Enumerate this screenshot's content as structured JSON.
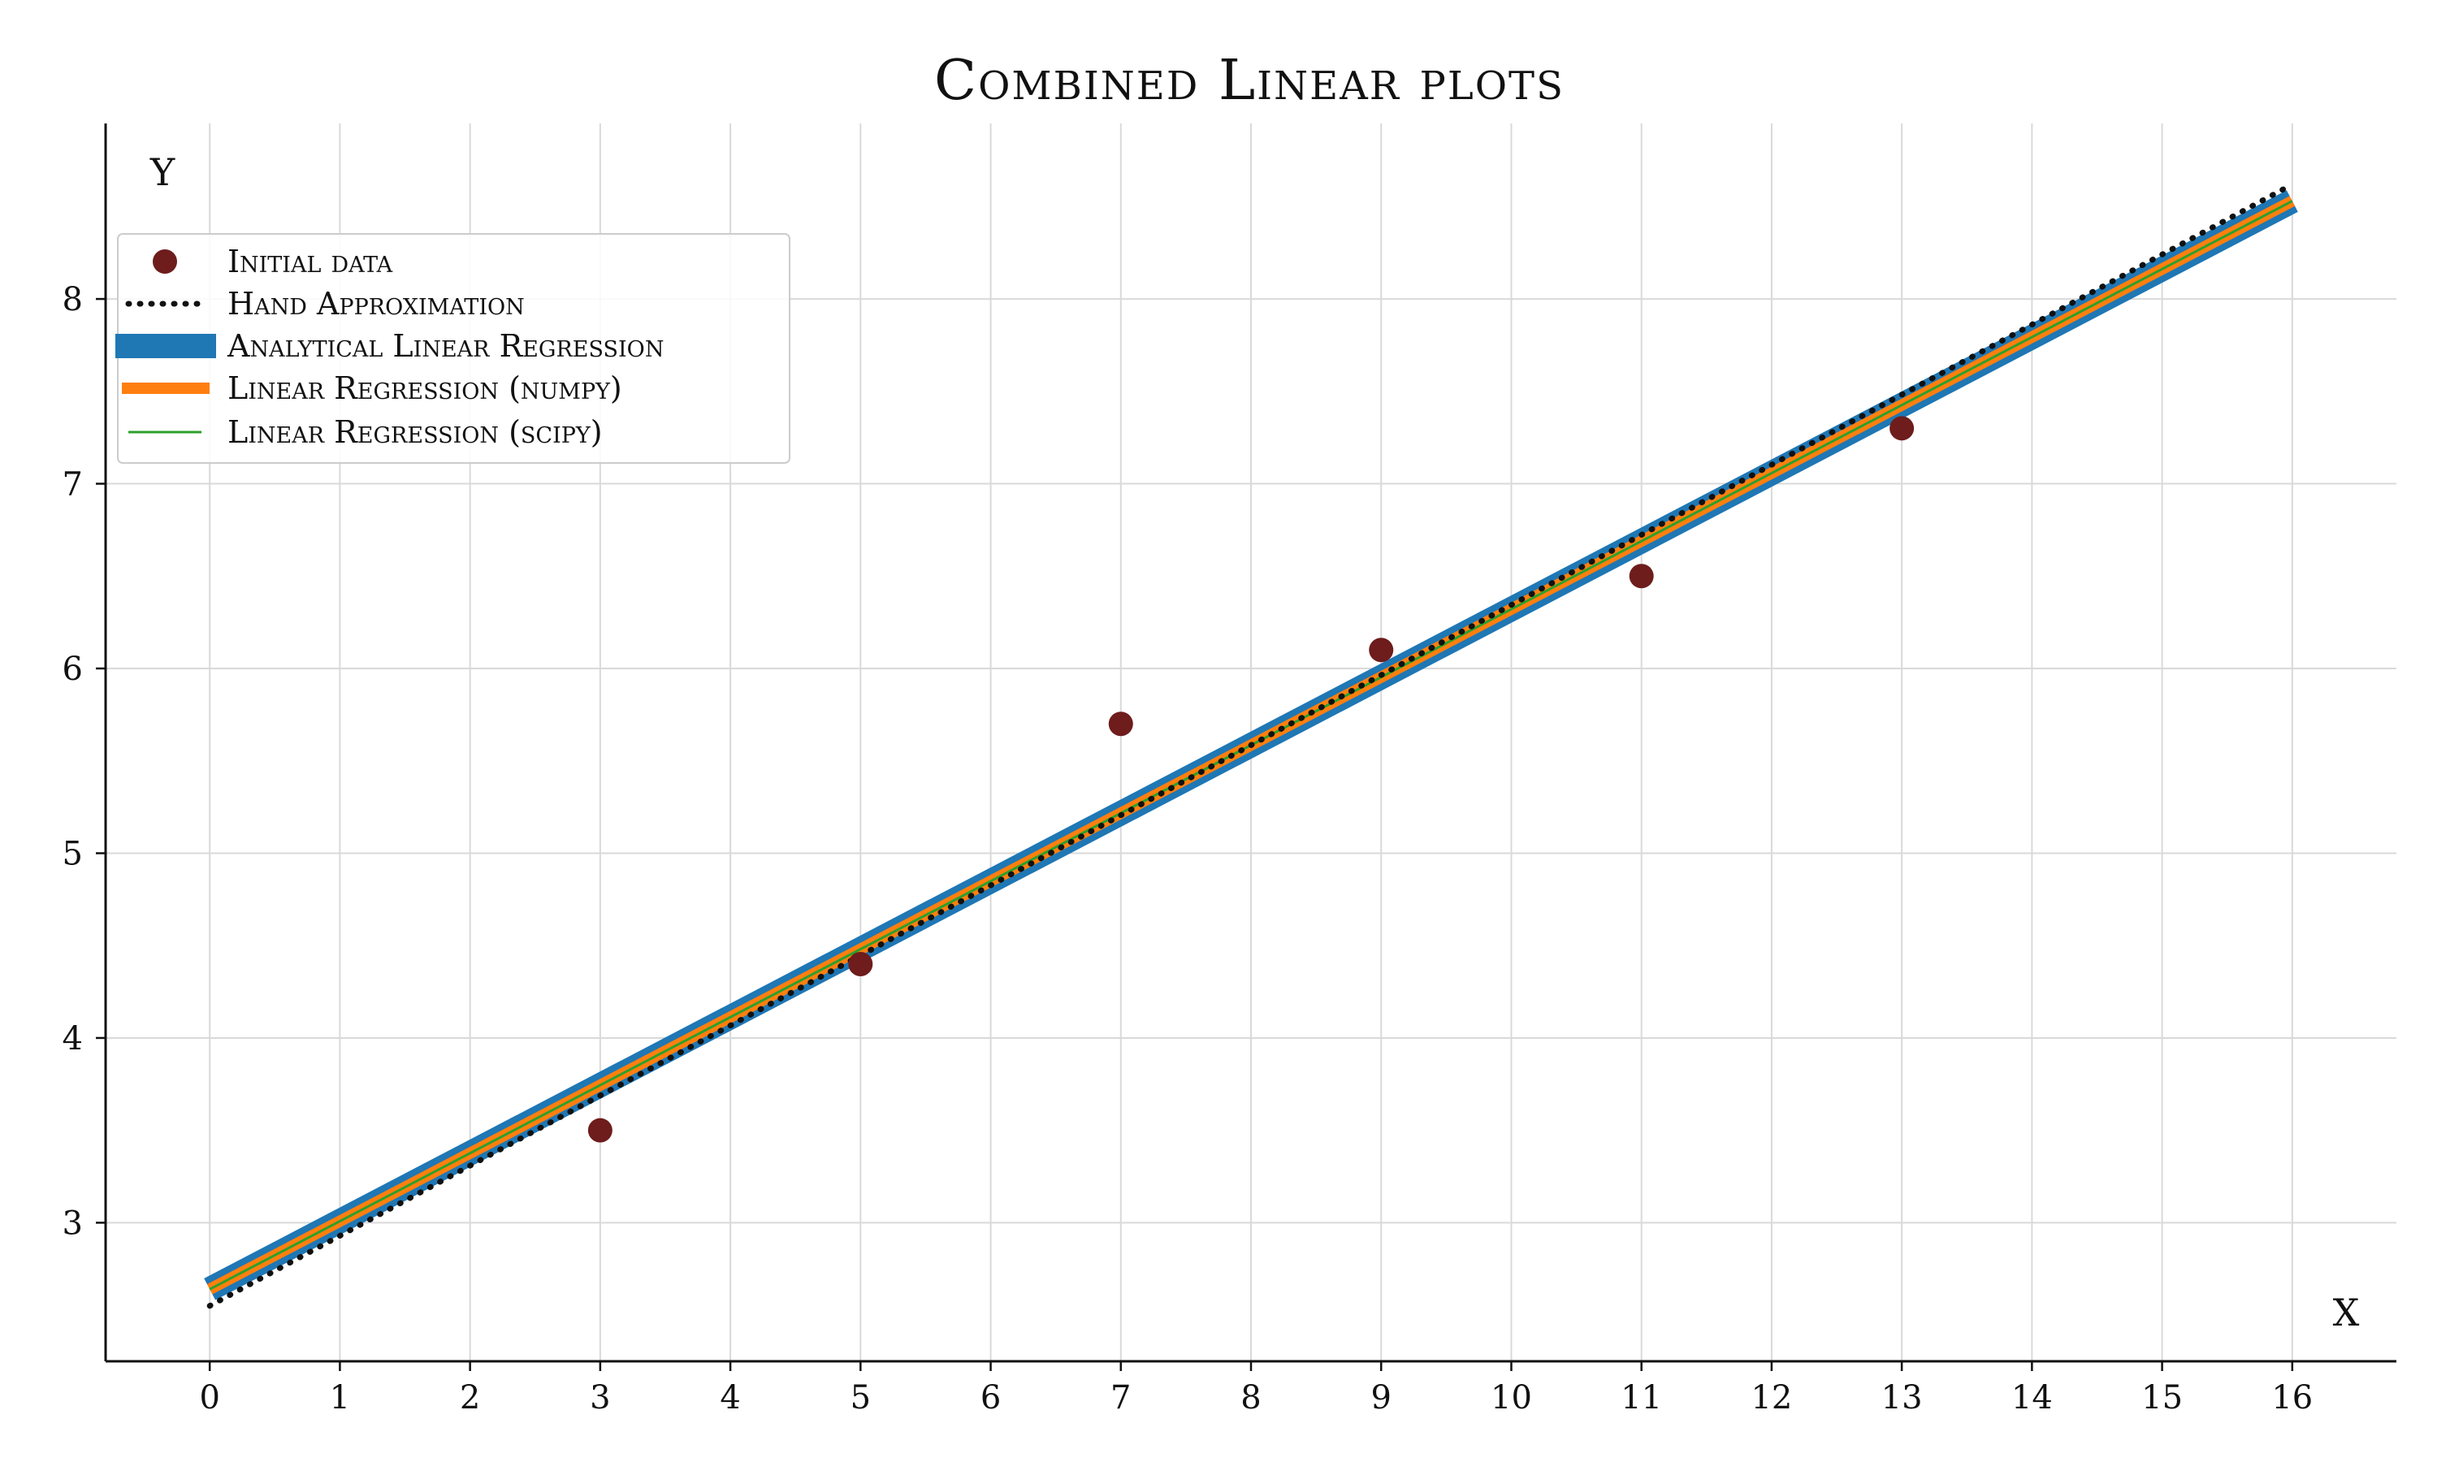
{
  "chart_data": {
    "type": "line",
    "title": "Combined Linear plots",
    "xlabel": "X",
    "ylabel": "Y",
    "xlim": [
      -0.8,
      16.8
    ],
    "ylim": [
      2.25,
      8.95
    ],
    "xticks": [
      0,
      1,
      2,
      3,
      4,
      5,
      6,
      7,
      8,
      9,
      10,
      11,
      12,
      13,
      14,
      15,
      16
    ],
    "yticks": [
      3,
      4,
      5,
      6,
      7,
      8
    ],
    "grid": true,
    "legend_position": "upper-left",
    "series": [
      {
        "name": "Initial data",
        "kind": "scatter",
        "color": "#6e1c1c",
        "x": [
          3,
          5,
          7,
          9,
          11,
          13
        ],
        "y": [
          3.5,
          4.4,
          5.7,
          6.1,
          6.5,
          7.3
        ]
      },
      {
        "name": "Hand Approximation",
        "kind": "line",
        "style": "dotted",
        "color": "#111111",
        "x": [
          0,
          16
        ],
        "y": [
          2.55,
          8.62
        ]
      },
      {
        "name": "Analytical Linear Regression",
        "kind": "line",
        "style": "solid",
        "color": "#1f77b4",
        "x": [
          0,
          16
        ],
        "y": [
          2.64,
          8.53
        ]
      },
      {
        "name": "Linear Regression (numpy)",
        "kind": "line",
        "style": "solid",
        "color": "#ff7f0e",
        "x": [
          0,
          16
        ],
        "y": [
          2.64,
          8.53
        ]
      },
      {
        "name": "Linear Regression (scipy)",
        "kind": "line",
        "style": "solid",
        "color": "#2ca02c",
        "x": [
          0,
          16
        ],
        "y": [
          2.64,
          8.53
        ]
      }
    ]
  }
}
